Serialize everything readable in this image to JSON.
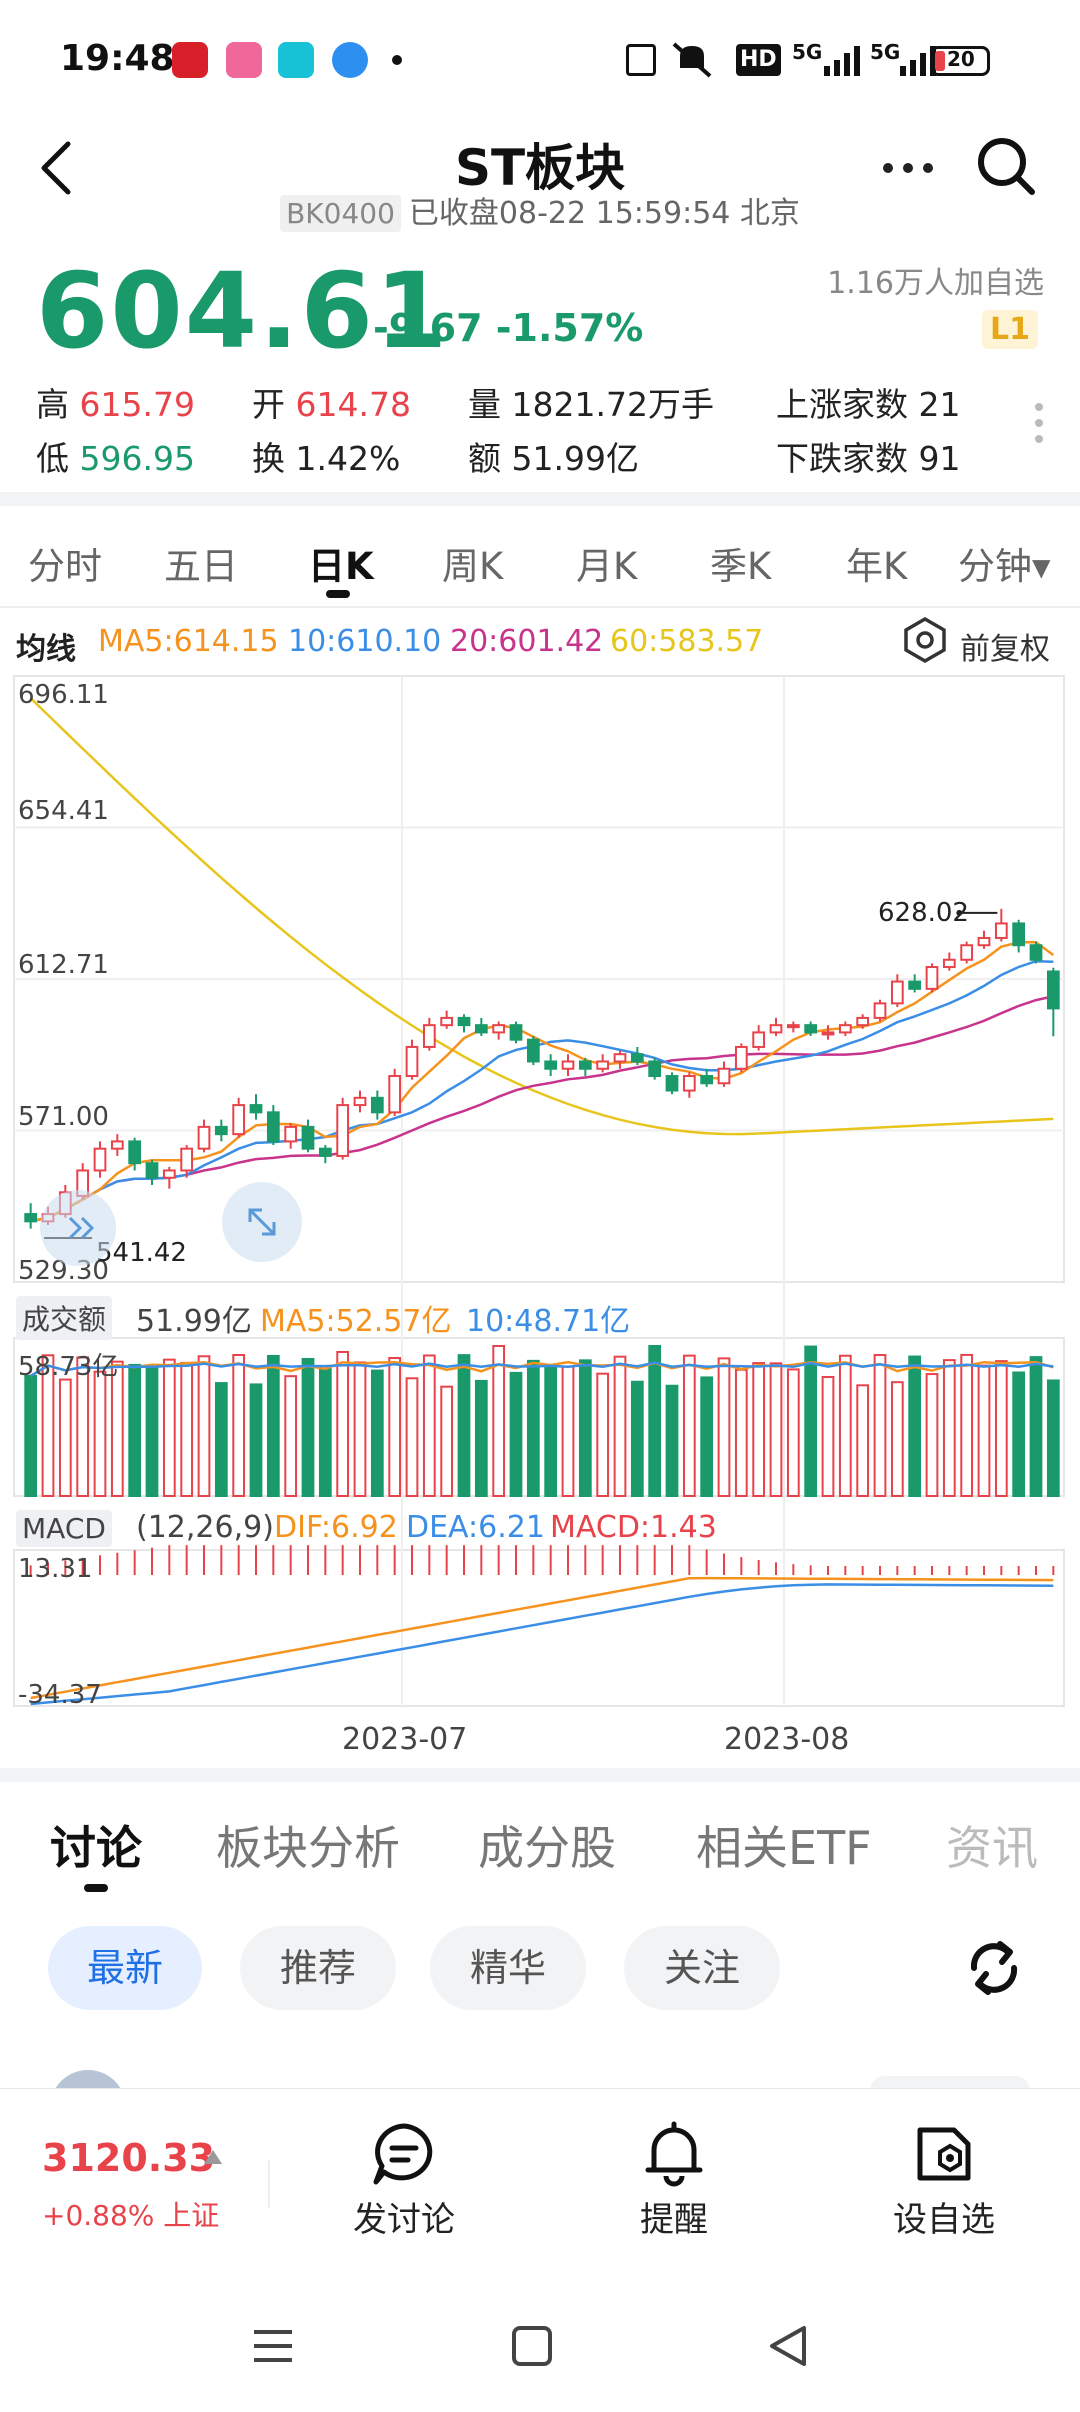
{
  "status_bar": {
    "time": "19:48",
    "network": "5G",
    "battery": "20",
    "hd": "HD"
  },
  "header": {
    "title": "ST板块",
    "code": "BK0400",
    "market_status": "已收盘08-22 15:59:54 北京"
  },
  "quote": {
    "price": "604.61",
    "change": "-9.67",
    "change_pct": "-1.57%",
    "watchers": "1.16万人加自选",
    "level_badge": "L1",
    "high_label": "高",
    "high": "615.79",
    "open_label": "开",
    "open": "614.78",
    "volume": "量 1821.72万手",
    "up_count": "上涨家数 21",
    "low_label": "低",
    "low": "596.95",
    "turnover_label": "换",
    "turnover": "1.42%",
    "amount": "额 51.99亿",
    "down_count": "下跌家数 91"
  },
  "period_tabs": [
    {
      "label": "分时"
    },
    {
      "label": "五日"
    },
    {
      "label": "日K"
    },
    {
      "label": "周K"
    },
    {
      "label": "月K"
    },
    {
      "label": "季K"
    },
    {
      "label": "年K"
    },
    {
      "label": "分钟▾"
    }
  ],
  "ma_legend": {
    "label": "均线",
    "ma5": "MA5:614.15",
    "ma10": "10:610.10",
    "ma20": "20:601.42",
    "ma60": "60:583.57",
    "adjust": "前复权"
  },
  "colors": {
    "up": "#e8424a",
    "down": "#1a9a6a",
    "ma5": "#f5931e",
    "ma10": "#3a8ee6",
    "ma20": "#c8338d",
    "ma60": "#e8c51c"
  },
  "chart_data": {
    "type": "candlestick",
    "y_ticks": [
      "696.11",
      "654.41",
      "612.71",
      "571.00",
      "529.30"
    ],
    "ylim": [
      529.3,
      696.11
    ],
    "high_annotation": "628.02",
    "low_annotation": "541.42",
    "x_ticks": [
      "2023-07",
      "2023-08"
    ],
    "candles": [
      [
        548,
        546,
        551,
        544
      ],
      [
        546,
        548,
        550,
        545
      ],
      [
        548,
        554,
        556,
        547
      ],
      [
        553,
        560,
        562,
        552
      ],
      [
        560,
        566,
        568,
        558
      ],
      [
        566,
        568,
        570,
        564
      ],
      [
        568,
        562,
        569,
        560
      ],
      [
        562,
        558,
        563,
        556
      ],
      [
        558,
        560,
        561,
        555
      ],
      [
        560,
        566,
        567,
        558
      ],
      [
        566,
        572,
        574,
        565
      ],
      [
        572,
        570,
        574,
        568
      ],
      [
        570,
        578,
        580,
        569
      ],
      [
        578,
        576,
        581,
        574
      ],
      [
        576,
        568,
        578,
        567
      ],
      [
        568,
        572,
        573,
        566
      ],
      [
        572,
        566,
        574,
        565
      ],
      [
        566,
        564,
        567,
        562
      ],
      [
        564,
        578,
        580,
        563
      ],
      [
        578,
        580,
        582,
        576
      ],
      [
        580,
        576,
        582,
        574
      ],
      [
        576,
        586,
        588,
        575
      ],
      [
        586,
        594,
        596,
        585
      ],
      [
        594,
        600,
        602,
        593
      ],
      [
        600,
        602,
        604,
        599
      ],
      [
        602,
        600,
        603,
        598
      ],
      [
        600,
        598,
        602,
        597
      ],
      [
        598,
        600,
        601,
        596
      ],
      [
        600,
        596,
        601,
        595
      ],
      [
        596,
        590,
        597,
        589
      ],
      [
        590,
        588,
        592,
        586
      ],
      [
        588,
        590,
        592,
        586
      ],
      [
        590,
        588,
        591,
        586
      ],
      [
        588,
        590,
        592,
        587
      ],
      [
        590,
        592,
        593,
        588
      ],
      [
        592,
        590,
        594,
        589
      ],
      [
        590,
        586,
        591,
        585
      ],
      [
        586,
        582,
        587,
        581
      ],
      [
        582,
        586,
        587,
        580
      ],
      [
        586,
        584,
        588,
        583
      ],
      [
        584,
        588,
        590,
        583
      ],
      [
        588,
        594,
        595,
        587
      ],
      [
        594,
        598,
        600,
        593
      ],
      [
        598,
        600,
        602,
        597
      ],
      [
        600,
        600,
        601,
        598
      ],
      [
        600,
        598,
        601,
        597
      ],
      [
        598,
        598,
        600,
        596
      ],
      [
        598,
        600,
        601,
        597
      ],
      [
        600,
        602,
        603,
        599
      ],
      [
        602,
        606,
        607,
        601
      ],
      [
        606,
        612,
        614,
        605
      ],
      [
        612,
        610,
        614,
        609
      ],
      [
        610,
        616,
        617,
        609
      ],
      [
        616,
        618,
        620,
        615
      ],
      [
        618,
        622,
        623,
        617
      ],
      [
        622,
        624,
        626,
        621
      ],
      [
        624,
        628,
        632,
        623
      ],
      [
        628,
        622,
        629,
        620
      ],
      [
        622,
        618,
        623,
        617
      ],
      [
        614.78,
        604.61,
        615.79,
        596.95
      ]
    ],
    "volume": {
      "label": "成交额",
      "value": "51.99亿",
      "ma5": "MA5:52.57亿",
      "ma10": "10:48.71亿",
      "top_tick": "58.73亿"
    },
    "macd": {
      "label": "MACD",
      "params": "(12,26,9)",
      "dif": "DIF:6.92",
      "dea": "DEA:6.21",
      "macd": "MACD:1.43",
      "top_tick": "13.31",
      "bottom_tick": "-34.37"
    }
  },
  "bottom_tabs": [
    {
      "label": "讨论"
    },
    {
      "label": "板块分析"
    },
    {
      "label": "成分股"
    },
    {
      "label": "相关ETF"
    },
    {
      "label": "资讯"
    }
  ],
  "filter_pills": [
    {
      "label": "最新"
    },
    {
      "label": "推荐"
    },
    {
      "label": "精华"
    },
    {
      "label": "关注"
    }
  ],
  "bottom_bar": {
    "index_value": "3120.33",
    "index_change": "+0.88% 上证",
    "post": "发讨论",
    "alert": "提醒",
    "watch": "设自选"
  }
}
